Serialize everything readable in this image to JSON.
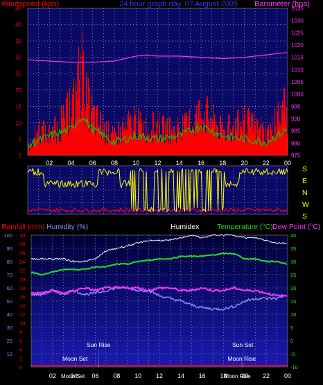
{
  "header": {
    "left": "Windspeed (kph)",
    "center": "24 hour graph day, 07 August 2005",
    "right": "Barometer (hpa)"
  },
  "colors": {
    "red": "#ff0000",
    "green": "#00cc00",
    "white": "#ffffff",
    "magenta": "#ff33ff",
    "yellow": "#ffff00",
    "blue": "#8888ff",
    "brightgreen": "#22dd22",
    "navy": "#0a0a66",
    "gridline": "#c8c8c8"
  },
  "chart_data": [
    {
      "type": "line",
      "title": "24 hour graph day, 07 August 2005",
      "ylabel": "Windspeed (kph)",
      "y2label": "Barometer (hpa)",
      "ylim": [
        0,
        45
      ],
      "y2lim": [
        975,
        1035
      ],
      "yticks": [
        "0",
        "5",
        "10",
        "15",
        "20",
        "25",
        "30",
        "35",
        "40",
        "45"
      ],
      "y2ticks": [
        "975",
        "980",
        "985",
        "990",
        "995",
        "1000",
        "1005",
        "1010",
        "1015",
        "1020",
        "1025",
        "1030",
        "1035"
      ],
      "xticks": [
        "02",
        "04",
        "06",
        "08",
        "10",
        "12",
        "14",
        "16",
        "18",
        "20",
        "22",
        "00"
      ],
      "series": [
        {
          "name": "Windspeed (kph)",
          "color": "red",
          "x": [
            0,
            1,
            2,
            3,
            4,
            4.5,
            5,
            5.5,
            6,
            7,
            8,
            9,
            10,
            11,
            12,
            13,
            14,
            15,
            16,
            17,
            18,
            19,
            20,
            21,
            22,
            23,
            24
          ],
          "y": [
            2,
            10,
            7,
            11,
            17,
            24,
            29,
            20,
            15,
            9,
            7,
            10,
            12,
            10,
            11,
            9,
            9,
            11,
            17,
            13,
            9,
            10,
            12,
            10,
            8,
            12,
            18
          ]
        },
        {
          "name": "Gust",
          "color": "green",
          "x": [
            0,
            2,
            4,
            5,
            6,
            8,
            10,
            12,
            14,
            16,
            18,
            20,
            22,
            24
          ],
          "y": [
            3,
            6,
            8,
            12,
            8,
            4,
            6,
            5,
            6,
            9,
            6,
            5,
            4,
            8
          ]
        },
        {
          "name": "Barometer (hpa)",
          "color": "magenta",
          "x": [
            0,
            2,
            4,
            6,
            8,
            9,
            10,
            11,
            12,
            14,
            16,
            18,
            20,
            22,
            24
          ],
          "y": [
            1014,
            1013.5,
            1013,
            1013,
            1013.5,
            1014.5,
            1015.5,
            1016,
            1015.5,
            1015.5,
            1015,
            1014.5,
            1015,
            1016,
            1017
          ]
        }
      ]
    },
    {
      "type": "line",
      "ylabel": "Wind direction",
      "compass_labels": [
        "S",
        "E",
        "N",
        "W",
        "S"
      ],
      "series": [
        {
          "name": "Wind direction",
          "color": "yellow",
          "x": [
            0,
            1,
            2,
            3,
            4,
            5,
            6,
            7,
            8,
            9,
            10,
            11,
            12,
            13,
            14,
            15,
            16,
            17,
            18,
            19,
            20,
            21,
            22,
            23,
            24
          ],
          "y": [
            "W",
            "W",
            "N",
            "N",
            "N",
            "N",
            "N",
            "W",
            "W",
            "N",
            "S",
            "S",
            "S",
            "S",
            "S",
            "S",
            "S",
            "S",
            "N",
            "N",
            "W",
            "W",
            "W",
            "W",
            "W"
          ]
        }
      ]
    },
    {
      "type": "line",
      "yllabel_rain": "Rainfall (mm)",
      "yllabel_humidity": "Humidity (%)",
      "label_humidex": "Humidex",
      "label_temperature": "Temperature (°C)",
      "label_dewpoint": "Dew Point (°C)",
      "rain_ticks": [
        "0",
        "2",
        "4",
        "6",
        "8",
        "10",
        "12",
        "14",
        "16",
        "18",
        "20",
        "22",
        "24",
        "26",
        "28",
        "30"
      ],
      "humidity_ticks": [
        "10",
        "20",
        "30",
        "40",
        "50",
        "60",
        "70",
        "80",
        "90",
        "100"
      ],
      "temp_ticks": [
        "-10",
        "-5",
        "0",
        "5",
        "10",
        "15",
        "20",
        "25",
        "30",
        "35",
        "40"
      ],
      "xticks": [
        "02",
        "04",
        "06",
        "08",
        "10",
        "12",
        "14",
        "16",
        "18",
        "20",
        "22",
        "00"
      ],
      "annotations": [
        "Moon Set",
        "Sun Rise",
        "Sun Set",
        "Moon Rise"
      ],
      "series": [
        {
          "name": "Humidex",
          "color": "white",
          "x": [
            0,
            1,
            2,
            3,
            4,
            5,
            6,
            7,
            8,
            9,
            10,
            11,
            12,
            13,
            14,
            15,
            16,
            17,
            18,
            19,
            20,
            21,
            22,
            23,
            24
          ],
          "y": [
            31,
            31,
            31,
            31,
            30,
            30,
            31,
            34,
            35,
            36,
            37,
            38,
            38,
            38,
            39,
            40,
            39,
            40,
            40,
            40,
            39,
            39,
            38,
            37,
            37
          ]
        },
        {
          "name": "Temperature (°C)",
          "color": "brightgreen",
          "x": [
            0,
            1,
            2,
            3,
            4,
            5,
            6,
            7,
            8,
            9,
            10,
            11,
            12,
            13,
            14,
            15,
            16,
            17,
            18,
            19,
            20,
            21,
            22,
            23,
            24
          ],
          "y": [
            26,
            25,
            26,
            27,
            27,
            27,
            28,
            28,
            29,
            29,
            30,
            30.5,
            31,
            31,
            32,
            32,
            32,
            32.5,
            33,
            33,
            31,
            31,
            30,
            30,
            29
          ]
        },
        {
          "name": "Dew Point (°C)",
          "color": "magenta",
          "x": [
            0,
            1,
            2,
            3,
            4,
            5,
            6,
            7,
            8,
            9,
            10,
            11,
            12,
            13,
            14,
            15,
            16,
            17,
            18,
            19,
            20,
            21,
            22,
            23,
            24
          ],
          "y": [
            18,
            18,
            19,
            18,
            19,
            20,
            19,
            20,
            20,
            20,
            20,
            19,
            20,
            20,
            19,
            19,
            20,
            19,
            19,
            20,
            19,
            19,
            18,
            17,
            17
          ]
        },
        {
          "name": "Humidity (%)",
          "color": "blue",
          "x": [
            0,
            1,
            2,
            3,
            4,
            5,
            6,
            7,
            8,
            9,
            10,
            11,
            12,
            13,
            14,
            15,
            16,
            17,
            18,
            19,
            20,
            21,
            22,
            23,
            24
          ],
          "y": [
            55,
            55,
            58,
            55,
            58,
            55,
            56,
            58,
            60,
            60,
            58,
            58,
            54,
            52,
            50,
            47,
            45,
            44,
            44,
            46,
            50,
            52,
            52,
            52,
            55
          ]
        },
        {
          "name": "Rainfall (mm)",
          "color": "red",
          "x": [
            0,
            24
          ],
          "y": [
            0,
            0
          ]
        }
      ]
    }
  ]
}
